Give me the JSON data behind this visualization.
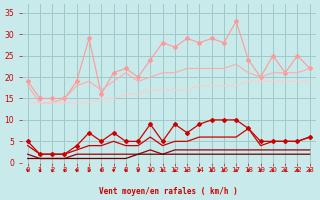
{
  "x": [
    0,
    1,
    2,
    3,
    4,
    5,
    6,
    7,
    8,
    9,
    10,
    11,
    12,
    13,
    14,
    15,
    16,
    17,
    18,
    19,
    20,
    21,
    22,
    23
  ],
  "bg_color": "#c8eaea",
  "grid_color": "#a0c8c8",
  "xlabel": "Vent moyen/en rafales ( km/h )",
  "xlabel_color": "#cc0000",
  "tick_color": "#cc0000",
  "arrow_color": "#cc0000",
  "line1": [
    19,
    15,
    15,
    15,
    19,
    29,
    16,
    21,
    22,
    20,
    24,
    28,
    27,
    29,
    28,
    29,
    28,
    33,
    24,
    20,
    25,
    21,
    25,
    22
  ],
  "line1_color": "#ff9999",
  "line2": [
    18,
    14,
    14,
    15,
    18,
    19,
    17,
    19,
    21,
    19,
    20,
    21,
    21,
    22,
    22,
    22,
    22,
    23,
    21,
    20,
    21,
    21,
    21,
    22
  ],
  "line2_color": "#ffaaaa",
  "line3": [
    14,
    14,
    14,
    14,
    14,
    14,
    15,
    15,
    16,
    16,
    17,
    17,
    17,
    17,
    18,
    18,
    18,
    18,
    19,
    19,
    19,
    19,
    19,
    19
  ],
  "line3_color": "#ffcccc",
  "line4": [
    5,
    2,
    2,
    2,
    4,
    7,
    5,
    7,
    5,
    5,
    9,
    5,
    9,
    7,
    9,
    10,
    10,
    10,
    8,
    5,
    5,
    5,
    5,
    6
  ],
  "line4_color": "#cc0000",
  "line5": [
    4,
    2,
    2,
    2,
    3,
    4,
    4,
    5,
    4,
    4,
    6,
    4,
    5,
    5,
    6,
    6,
    6,
    6,
    8,
    4,
    5,
    5,
    5,
    6
  ],
  "line5_color": "#cc0000",
  "line6": [
    2,
    1,
    1,
    1,
    2,
    2,
    2,
    2,
    2,
    2,
    3,
    2,
    3,
    3,
    3,
    3,
    3,
    3,
    3,
    3,
    3,
    3,
    3,
    3
  ],
  "line6_color": "#990000",
  "line7": [
    1,
    1,
    1,
    1,
    1,
    1,
    1,
    1,
    1,
    2,
    2,
    2,
    2,
    2,
    2,
    2,
    2,
    2,
    2,
    2,
    2,
    2,
    2,
    2
  ],
  "line7_color": "#660000",
  "yticks": [
    0,
    5,
    10,
    15,
    20,
    25,
    30,
    35
  ],
  "ylim": [
    0,
    37
  ],
  "xlim": [
    -0.5,
    23.5
  ]
}
